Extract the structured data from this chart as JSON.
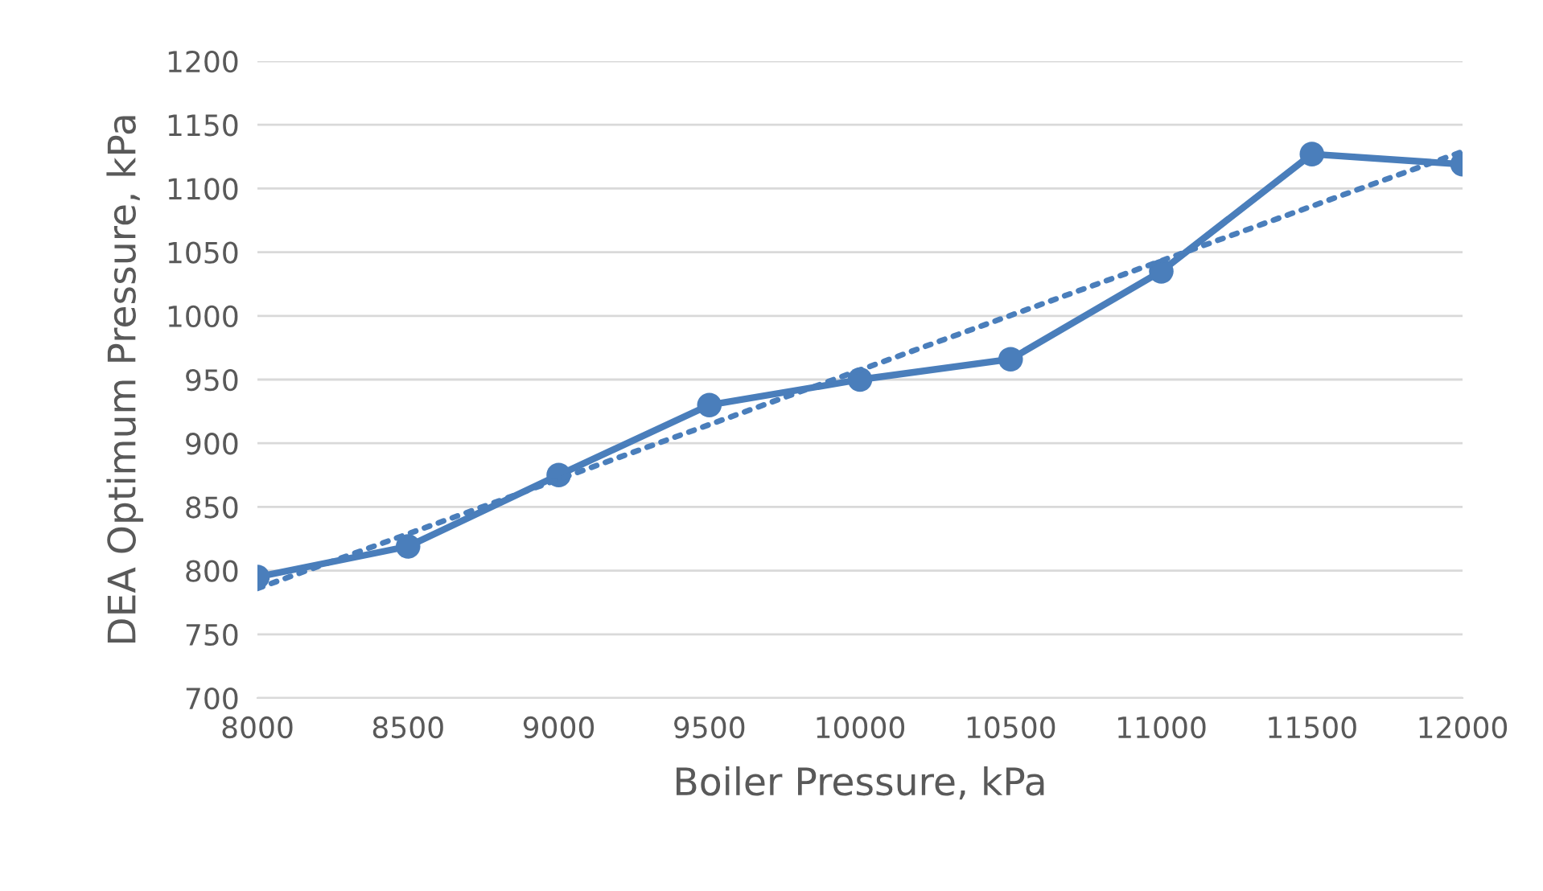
{
  "chart_data": {
    "type": "line",
    "xlabel": "Boiler Pressure, kPa",
    "ylabel": "DEA Optimum Pressure, kPa",
    "x": [
      8000,
      8500,
      9000,
      9500,
      10000,
      10500,
      11000,
      11500,
      12000
    ],
    "series": [
      {
        "color": "#4a7ebb",
        "values": [
          795,
          819,
          875,
          930,
          950,
          966,
          1035,
          1127,
          1119
        ],
        "marker": "circle",
        "line_style": "solid"
      },
      {
        "type": "line",
        "color": "#4a7ebb",
        "x": [
          8000,
          12000
        ],
        "values": [
          786,
          1129
        ],
        "marker": "none",
        "line_style": "dotted"
      }
    ],
    "xlim": [
      8000,
      12000
    ],
    "xticks": [
      8000,
      8500,
      9000,
      9500,
      10000,
      10500,
      11000,
      11500,
      12000
    ],
    "ylim": [
      700,
      1200
    ],
    "yticks": [
      700,
      750,
      800,
      850,
      900,
      950,
      1000,
      1050,
      1100,
      1150,
      1200
    ],
    "grid": "y"
  }
}
